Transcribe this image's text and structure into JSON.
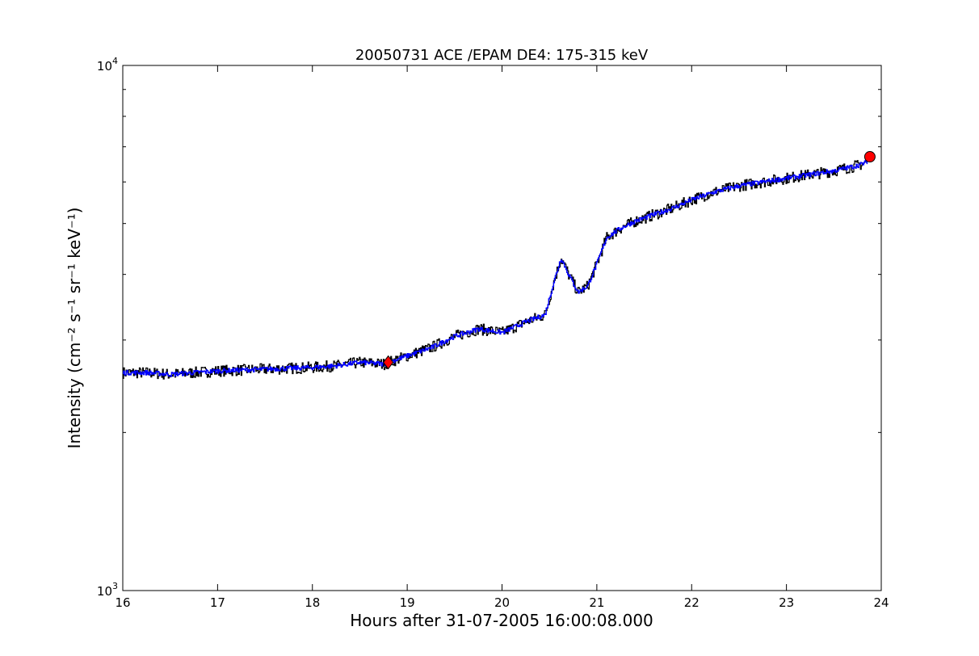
{
  "chart_data": {
    "type": "line",
    "title": "20050731 ACE /EPAM DE4: 175-315 keV",
    "xlabel": "Hours after 31-07-2005 16:00:08.000",
    "ylabel": "Intensity (cm⁻² s⁻¹ sr⁻¹ keV⁻¹)",
    "xlim": [
      16,
      24
    ],
    "ylim": [
      1000,
      10000
    ],
    "yscale": "log",
    "grid": false,
    "x_ticks": [
      16,
      17,
      18,
      19,
      20,
      21,
      22,
      23,
      24
    ],
    "x_tick_labels": [
      "16",
      "17",
      "18",
      "19",
      "20",
      "21",
      "22",
      "23",
      "24"
    ],
    "y_ticks": [
      1000,
      10000
    ],
    "y_tick_labels": [
      {
        "base": "10",
        "exp": "3"
      },
      {
        "base": "10",
        "exp": "4"
      }
    ],
    "y_minor_ticks": [
      2000,
      3000,
      4000,
      5000,
      6000,
      7000,
      8000,
      9000
    ],
    "colors": {
      "raw": "#000000",
      "smoothed": "#0000ff",
      "marker": "#ff0000"
    },
    "series": [
      {
        "role": "raw intensity",
        "color": "#000000",
        "x": [
          16.0,
          16.25,
          16.5,
          16.75,
          17.0,
          17.25,
          17.5,
          17.75,
          18.0,
          18.25,
          18.5,
          18.75,
          19.0,
          19.25,
          19.5,
          19.75,
          20.0,
          20.25,
          20.45,
          20.55,
          20.62,
          20.7,
          20.8,
          20.9,
          21.0,
          21.1,
          21.25,
          21.4,
          21.6,
          21.8,
          22.0,
          22.25,
          22.5,
          22.75,
          23.0,
          23.25,
          23.5,
          23.75,
          23.85
        ],
        "y": [
          2600,
          2600,
          2580,
          2600,
          2620,
          2630,
          2640,
          2650,
          2660,
          2680,
          2720,
          2700,
          2800,
          2900,
          3050,
          3150,
          3100,
          3250,
          3350,
          3900,
          4300,
          4000,
          3700,
          3800,
          4200,
          4700,
          4900,
          5050,
          5200,
          5350,
          5550,
          5750,
          5900,
          6000,
          6100,
          6200,
          6300,
          6450,
          6550
        ]
      },
      {
        "role": "smoothed intensity",
        "color": "#0000ff",
        "x": [
          16.0,
          16.25,
          16.5,
          16.75,
          17.0,
          17.25,
          17.5,
          17.75,
          18.0,
          18.25,
          18.5,
          18.75,
          19.0,
          19.25,
          19.5,
          19.75,
          20.0,
          20.25,
          20.45,
          20.55,
          20.62,
          20.7,
          20.8,
          20.9,
          21.0,
          21.1,
          21.25,
          21.4,
          21.6,
          21.8,
          22.0,
          22.25,
          22.5,
          22.75,
          23.0,
          23.25,
          23.5,
          23.75,
          23.85
        ],
        "y": [
          2600,
          2600,
          2580,
          2600,
          2620,
          2630,
          2640,
          2650,
          2660,
          2680,
          2720,
          2700,
          2800,
          2900,
          3050,
          3150,
          3100,
          3250,
          3350,
          3900,
          4300,
          4000,
          3700,
          3800,
          4200,
          4700,
          4900,
          5050,
          5200,
          5350,
          5550,
          5750,
          5900,
          6000,
          6100,
          6200,
          6300,
          6450,
          6550
        ]
      }
    ],
    "markers": [
      {
        "shape": "diamond",
        "color": "#ff0000",
        "x": 18.8,
        "y": 2720
      },
      {
        "shape": "circle",
        "color": "#ff0000",
        "x": 23.88,
        "y": 6700
      }
    ]
  }
}
